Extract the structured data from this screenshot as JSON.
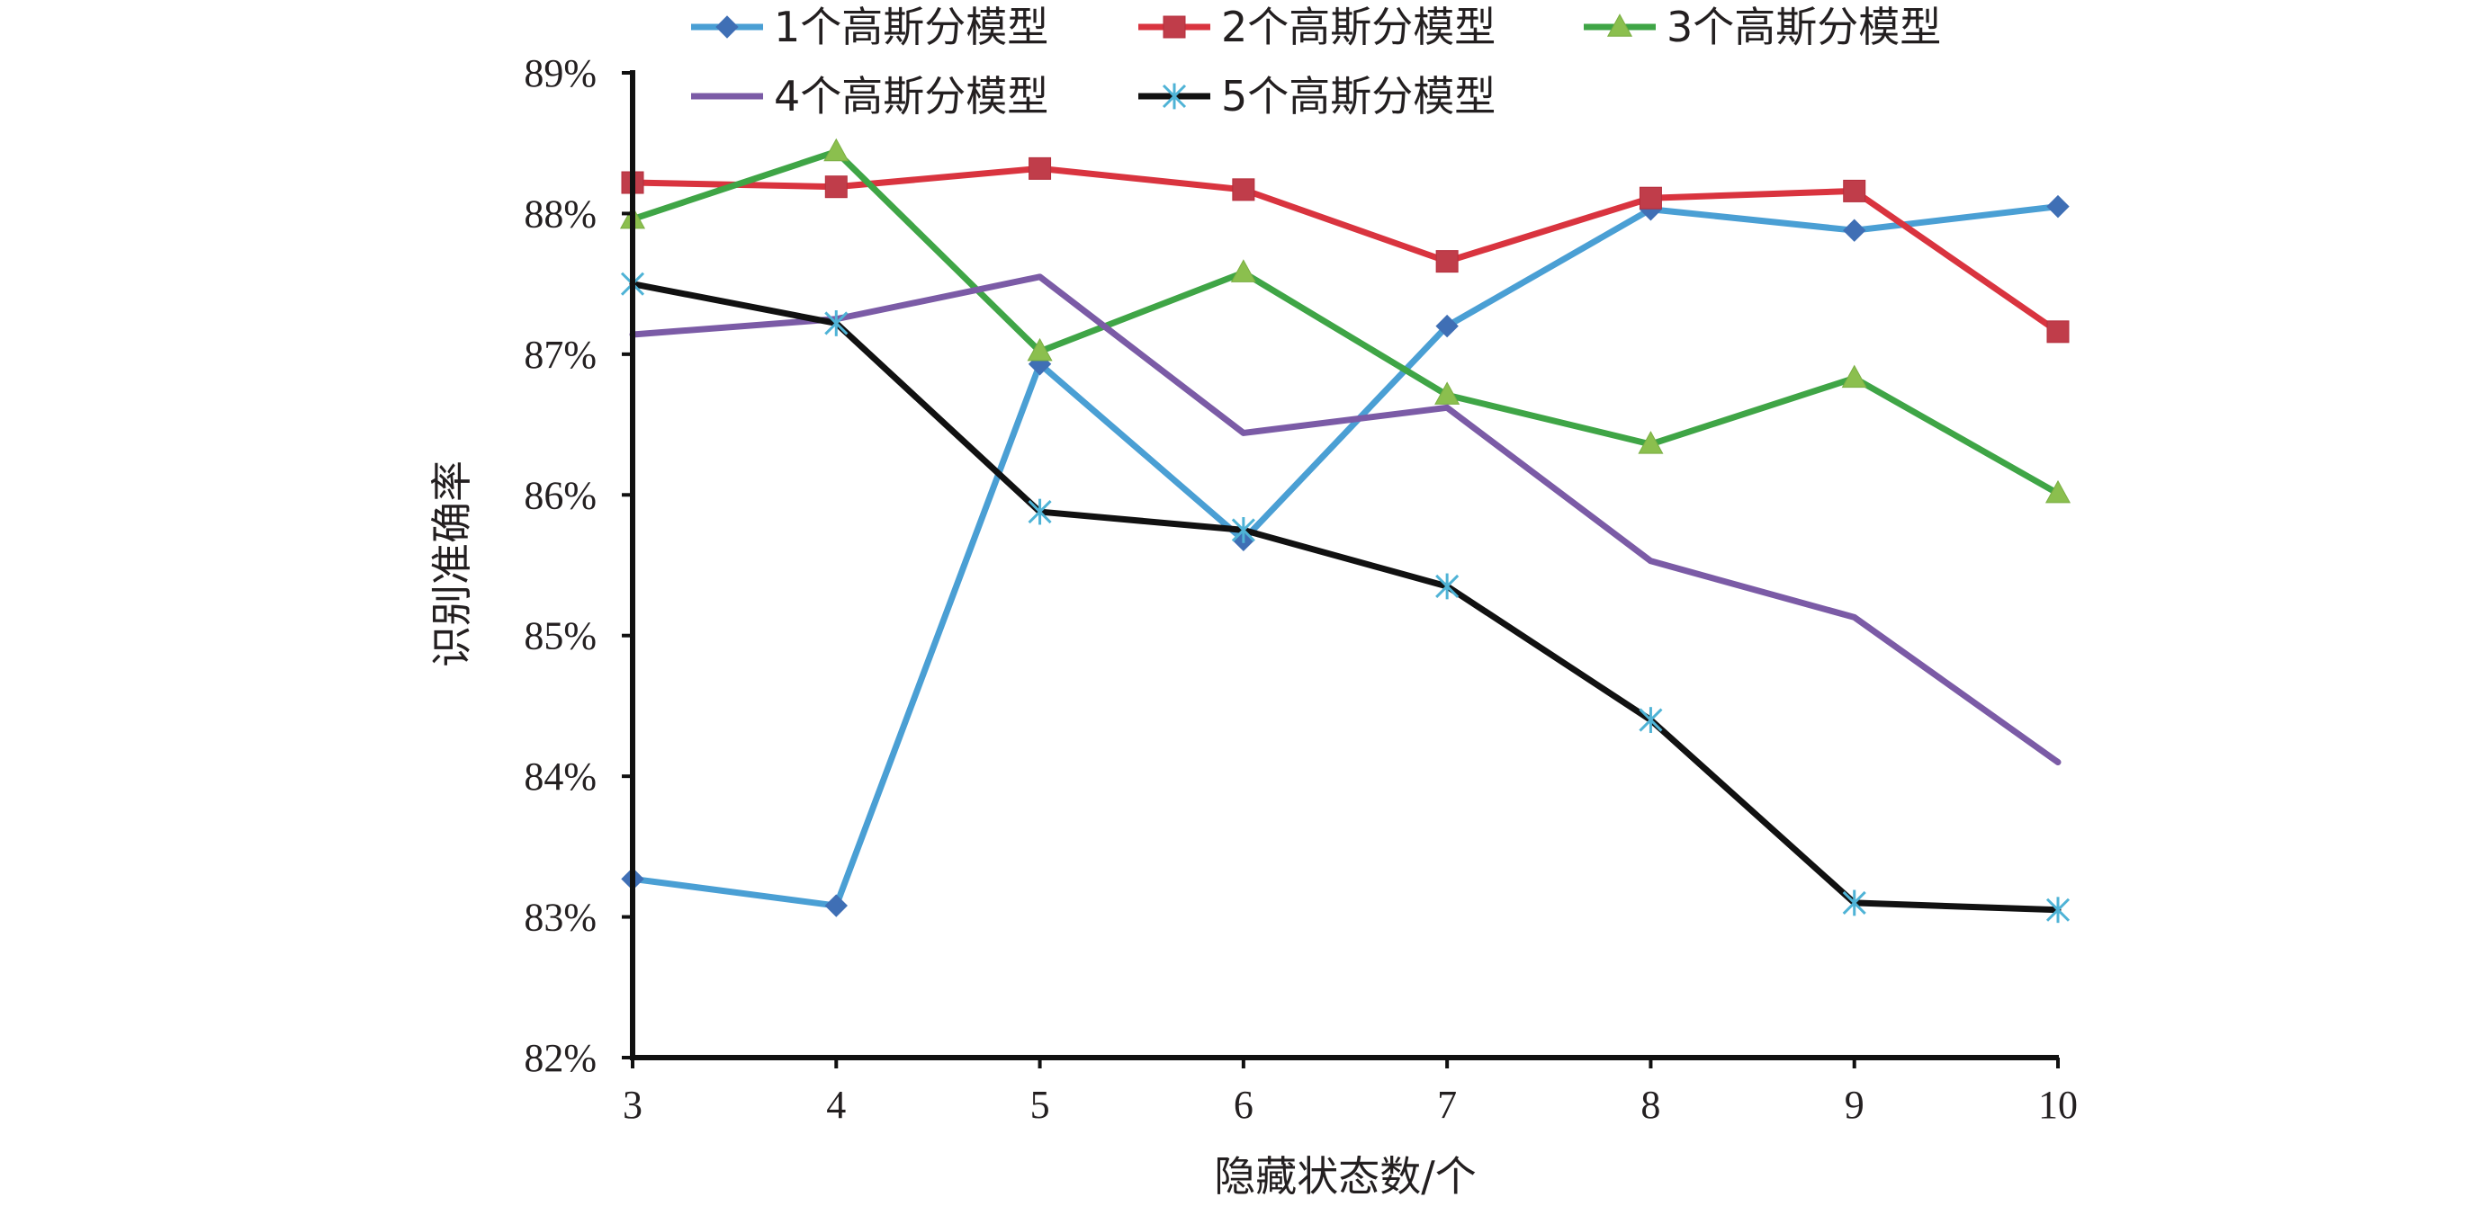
{
  "chart_data": {
    "type": "line",
    "xlabel": "隐藏状态数/个",
    "ylabel": "识别准确率",
    "x": [
      3,
      4,
      5,
      6,
      7,
      8,
      9,
      10
    ],
    "x_tick_labels": [
      "3",
      "4",
      "5",
      "6",
      "7",
      "8",
      "9",
      "10"
    ],
    "ylim": [
      82,
      89
    ],
    "y_ticks": [
      82,
      83,
      84,
      85,
      86,
      87,
      88,
      89
    ],
    "y_tick_labels": [
      "82%",
      "83%",
      "84%",
      "85%",
      "86%",
      "87%",
      "88%",
      "89%"
    ],
    "grid": false,
    "legend_position": "top",
    "series": [
      {
        "name": "1个高斯分模型",
        "color": "#4a9fd4",
        "marker": "diamond",
        "values": [
          83.27,
          83.08,
          86.93,
          85.68,
          87.2,
          88.03,
          87.88,
          88.05
        ]
      },
      {
        "name": "2个高斯分模型",
        "color": "#d9343f",
        "marker": "square",
        "values": [
          88.22,
          88.19,
          88.32,
          88.17,
          87.66,
          88.11,
          88.16,
          87.16
        ]
      },
      {
        "name": "3个高斯分模型",
        "color": "#3fa546",
        "marker": "triangle",
        "values": [
          87.96,
          88.44,
          87.02,
          87.58,
          86.71,
          86.36,
          86.83,
          86.01
        ]
      },
      {
        "name": "4个高斯分模型",
        "color": "#7b5ba6",
        "marker": "none",
        "values": [
          87.14,
          87.25,
          87.55,
          86.44,
          86.62,
          85.53,
          85.13,
          84.1
        ]
      },
      {
        "name": "5个高斯分模型",
        "color": "#111111",
        "marker": "asterisk",
        "values": [
          87.5,
          87.22,
          85.88,
          85.75,
          85.35,
          84.4,
          83.1,
          83.05
        ]
      }
    ]
  }
}
